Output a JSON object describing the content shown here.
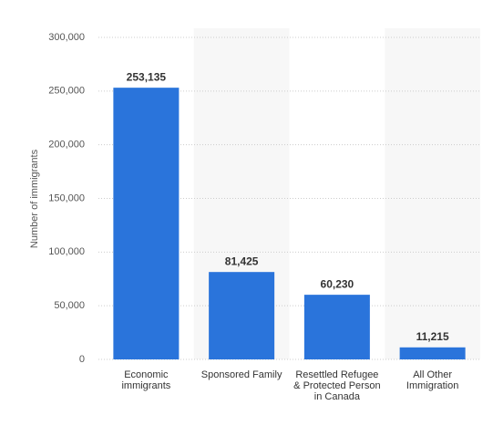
{
  "chart_data": {
    "type": "bar",
    "y_label": "Number of immigrants",
    "categories": [
      "Economic immigrants",
      "Sponsored Family",
      "Resettled Refugee & Protected Person in Canada",
      "All Other Immigration"
    ],
    "values": [
      253135,
      81425,
      60230,
      11215
    ],
    "value_labels": [
      "253,135",
      "81,425",
      "60,230",
      "11,215"
    ],
    "color": "#2a74db",
    "ylim": [
      0,
      300000
    ],
    "yticks": [
      0,
      {
        "value": 50000,
        "label": "50,000"
      },
      {
        "value": 100000,
        "label": "100,000"
      },
      {
        "value": 150000,
        "label": "150,000"
      },
      {
        "value": 200000,
        "label": "200,000"
      },
      {
        "value": 250000,
        "label": "250,000"
      },
      {
        "value": 300000,
        "label": "300,000"
      }
    ],
    "grid": true
  }
}
